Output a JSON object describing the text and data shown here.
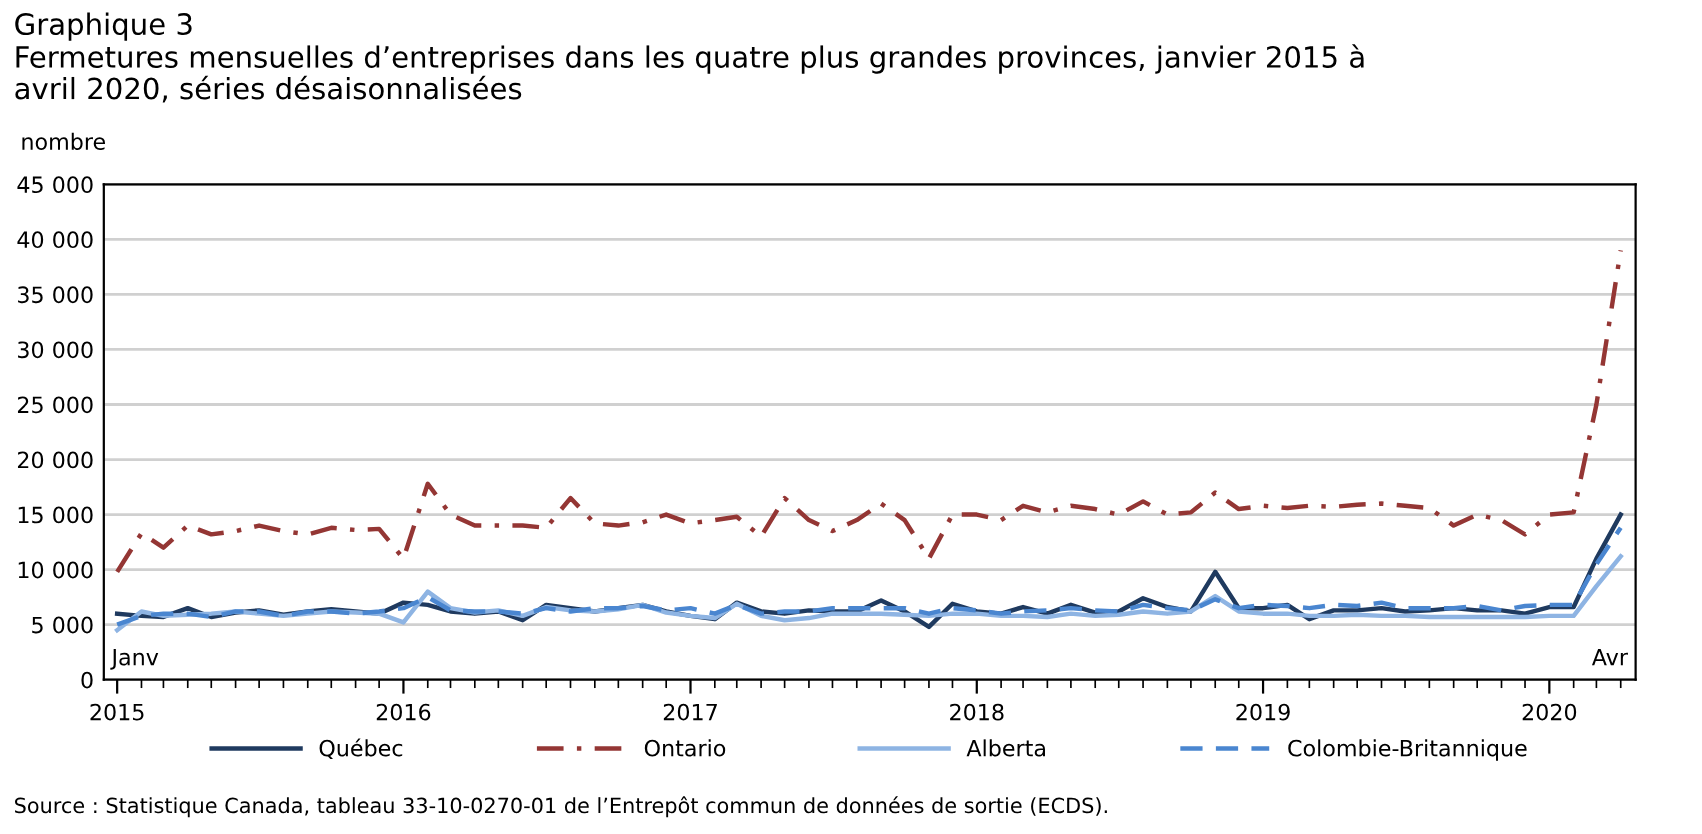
{
  "chart_data": {
    "type": "line",
    "title": "Graphique 3\nFermetures mensuelles d’entreprises dans les quatre plus grandes provinces, janvier 2015 à\navril 2020, séries désaisonnalisées",
    "ylabel": "nombre",
    "x": [
      "2015-01",
      "2015-02",
      "2015-03",
      "2015-04",
      "2015-05",
      "2015-06",
      "2015-07",
      "2015-08",
      "2015-09",
      "2015-10",
      "2015-11",
      "2015-12",
      "2016-01",
      "2016-02",
      "2016-03",
      "2016-04",
      "2016-05",
      "2016-06",
      "2016-07",
      "2016-08",
      "2016-09",
      "2016-10",
      "2016-11",
      "2016-12",
      "2017-01",
      "2017-02",
      "2017-03",
      "2017-04",
      "2017-05",
      "2017-06",
      "2017-07",
      "2017-08",
      "2017-09",
      "2017-10",
      "2017-11",
      "2017-12",
      "2018-01",
      "2018-02",
      "2018-03",
      "2018-04",
      "2018-05",
      "2018-06",
      "2018-07",
      "2018-08",
      "2018-09",
      "2018-10",
      "2018-11",
      "2018-12",
      "2019-01",
      "2019-02",
      "2019-03",
      "2019-04",
      "2019-05",
      "2019-06",
      "2019-07",
      "2019-08",
      "2019-09",
      "2019-10",
      "2019-11",
      "2019-12",
      "2020-01",
      "2020-02",
      "2020-03",
      "2020-04"
    ],
    "series": [
      {
        "name": "Québec",
        "color": "#1f3a5f",
        "line_style": "solid",
        "values": [
          6000,
          5800,
          5700,
          6500,
          5700,
          6100,
          6300,
          5900,
          6200,
          6400,
          6200,
          6000,
          7000,
          6800,
          6200,
          6000,
          6200,
          5400,
          6800,
          6500,
          6200,
          6500,
          6800,
          6200,
          5800,
          5500,
          7000,
          6200,
          6000,
          6300,
          6200,
          6200,
          7200,
          6200,
          4800,
          6900,
          6200,
          6000,
          6600,
          6000,
          6800,
          6100,
          6200,
          7400,
          6600,
          6200,
          9800,
          6500,
          6500,
          6800,
          5500,
          6300,
          6300,
          6500,
          6200,
          6300,
          6500,
          6300,
          6300,
          6000,
          6600,
          6600,
          11000,
          15000
        ]
      },
      {
        "name": "Ontario",
        "color": "#943634",
        "line_style": "dashdot",
        "values": [
          9800,
          13300,
          12000,
          14000,
          13200,
          13500,
          14000,
          13500,
          13200,
          13800,
          13600,
          13700,
          11000,
          17800,
          15000,
          14000,
          14000,
          14000,
          13800,
          16500,
          14200,
          14000,
          14300,
          15000,
          14200,
          14500,
          14800,
          13000,
          16500,
          14500,
          13500,
          14500,
          16000,
          14500,
          11000,
          15000,
          15000,
          14500,
          15800,
          15200,
          15800,
          15500,
          15000,
          16200,
          15000,
          15200,
          17000,
          15500,
          15800,
          15600,
          15800,
          15700,
          15900,
          16000,
          15800,
          15600,
          14000,
          15000,
          14500,
          13200,
          15000,
          15200,
          25000,
          39000
        ]
      },
      {
        "name": "Alberta",
        "color": "#8eb4e3",
        "line_style": "solid",
        "values": [
          4500,
          6200,
          5800,
          5900,
          6000,
          6200,
          6000,
          5800,
          6000,
          6200,
          6100,
          6000,
          5200,
          8000,
          6500,
          6100,
          6300,
          5800,
          6600,
          6300,
          6200,
          6400,
          6800,
          6100,
          5800,
          5600,
          6900,
          5800,
          5400,
          5600,
          6000,
          6000,
          6000,
          5900,
          5800,
          6000,
          6000,
          5800,
          5800,
          5700,
          6000,
          5800,
          5900,
          6200,
          6000,
          6200,
          7600,
          6200,
          6000,
          6000,
          5800,
          5800,
          5900,
          5800,
          5800,
          5700,
          5700,
          5700,
          5700,
          5700,
          5800,
          5800,
          8500,
          11200
        ]
      },
      {
        "name": "Colombie-Britannique",
        "color": "#4a86d0",
        "line_style": "dashed",
        "values": [
          5000,
          5800,
          6000,
          6000,
          5700,
          6200,
          6200,
          5800,
          6200,
          6200,
          6000,
          6200,
          6500,
          7500,
          6300,
          6200,
          6200,
          6000,
          6500,
          6200,
          6500,
          6500,
          6700,
          6300,
          6500,
          6000,
          6800,
          6000,
          6200,
          6200,
          6500,
          6500,
          6500,
          6500,
          6000,
          6500,
          6300,
          6000,
          6200,
          6300,
          6500,
          6300,
          6200,
          6800,
          6500,
          6300,
          7300,
          6500,
          6800,
          6700,
          6500,
          6800,
          6700,
          7000,
          6500,
          6500,
          6500,
          6700,
          6300,
          6700,
          6800,
          6800,
          10500,
          13800
        ]
      }
    ],
    "xlim": [
      "2014-12-15",
      "2020-04-20"
    ],
    "xticks": [
      {
        "value": "2015-01",
        "label": "2015"
      },
      {
        "value": "2016-01",
        "label": "2016"
      },
      {
        "value": "2017-01",
        "label": "2017"
      },
      {
        "value": "2018-01",
        "label": "2018"
      },
      {
        "value": "2019-01",
        "label": "2019"
      },
      {
        "value": "2020-01",
        "label": "2020"
      }
    ],
    "ylim": [
      0,
      45000
    ],
    "yticks": [
      {
        "value": 0,
        "label": "0"
      },
      {
        "value": 5000,
        "label": "5 000"
      },
      {
        "value": 10000,
        "label": "10 000"
      },
      {
        "value": 15000,
        "label": "15 000"
      },
      {
        "value": 20000,
        "label": "20 000"
      },
      {
        "value": 25000,
        "label": "25 000"
      },
      {
        "value": 30000,
        "label": "30 000"
      },
      {
        "value": 35000,
        "label": "35 000"
      },
      {
        "value": 40000,
        "label": "40 000"
      },
      {
        "value": 45000,
        "label": "45 000"
      }
    ],
    "grid": "y",
    "legend": "bottom",
    "marker": "none",
    "annotations": [
      "Janv",
      "Avr",
      "Source : Statistique Canada, tableau 33-10-0270-01 de l’Entrepôt commun de données de sortie (ECDS)."
    ]
  }
}
